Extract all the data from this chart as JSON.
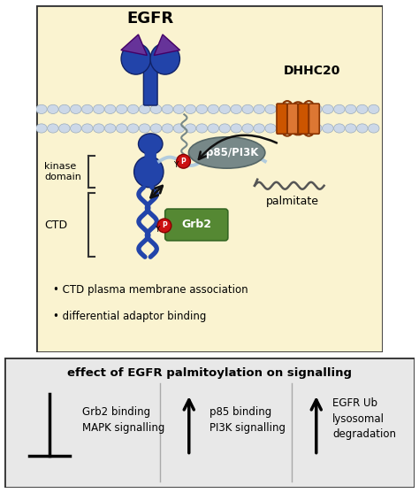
{
  "fig_width": 4.74,
  "fig_height": 5.57,
  "dpi": 100,
  "bg_top": "#faf3d0",
  "bg_bottom": "#e8e8e8",
  "border_color": "#333333",
  "top_panel_title": "EGFR",
  "dhhc20_label": "DHHC20",
  "palmitate_label": "palmitate",
  "kinase_label": "kinase\ndomain",
  "ctd_label": "CTD",
  "p85_label": "p85/PI3K",
  "grb2_label": "Grb2",
  "bullet1": "• CTD plasma membrane association",
  "bullet2": "• differential adaptor binding",
  "bottom_title": "effect of EGFR palmitoylation on signalling",
  "col1_line1": "Grb2 binding",
  "col1_line2": "MAPK signalling",
  "col2_line1": "p85 binding",
  "col2_line2": "PI3K signalling",
  "col3_line1": "EGFR Ub",
  "col3_line2": "lysosomal",
  "col3_line3": "degradation",
  "membrane_color": "#ccd8e8",
  "membrane_outline": "#9aabbb",
  "egfr_body_color": "#2244aa",
  "egfr_domain_color": "#663399",
  "dhhc20_color": "#cc5500",
  "dhhc20_light": "#dd7733",
  "p85_color": "#778888",
  "grb2_color": "#558833",
  "phospho_color": "#cc1111",
  "arrow_color": "#111111",
  "ctd_bracket_color": "#333333",
  "palmitate_line_color": "#555555",
  "light_blue_line": "#aac8e0"
}
